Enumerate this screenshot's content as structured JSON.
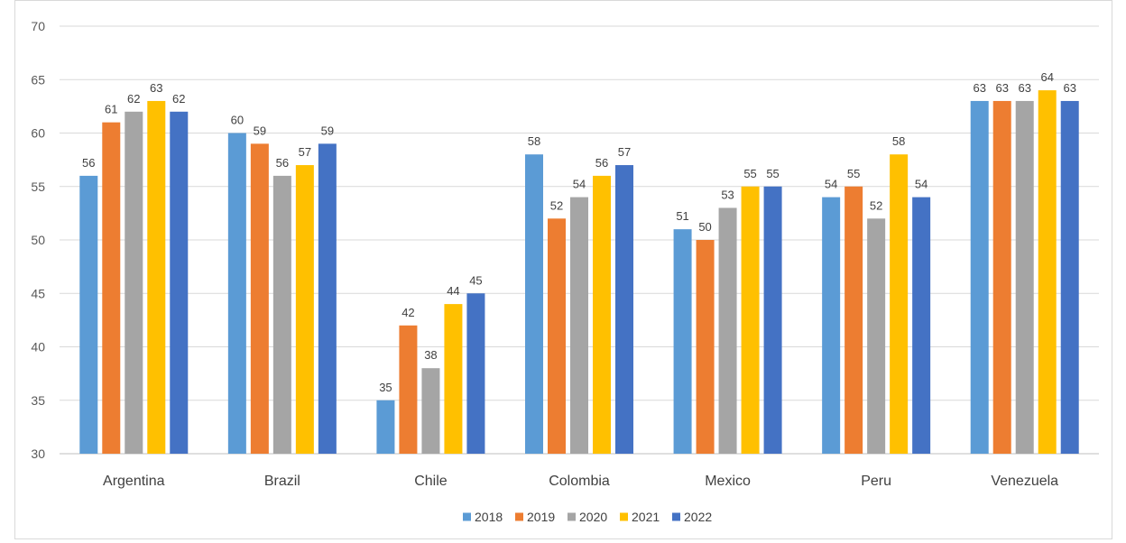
{
  "chart_data": {
    "type": "bar",
    "title": "",
    "xlabel": "",
    "ylabel": "",
    "ylim": [
      30,
      70
    ],
    "yticks": [
      30,
      35,
      40,
      45,
      50,
      55,
      60,
      65,
      70
    ],
    "grid": true,
    "legend_position": "bottom",
    "categories": [
      "Argentina",
      "Brazil",
      "Chile",
      "Colombia",
      "Mexico",
      "Peru",
      "Venezuela"
    ],
    "series": [
      {
        "name": "2018",
        "color": "#5B9BD5",
        "values": [
          56,
          60,
          35,
          58,
          51,
          54,
          63
        ]
      },
      {
        "name": "2019",
        "color": "#ED7D31",
        "values": [
          61,
          59,
          42,
          52,
          50,
          55,
          63
        ]
      },
      {
        "name": "2020",
        "color": "#A5A5A5",
        "values": [
          62,
          56,
          38,
          54,
          53,
          52,
          63
        ]
      },
      {
        "name": "2021",
        "color": "#FFC000",
        "values": [
          63,
          57,
          44,
          56,
          55,
          58,
          64
        ]
      },
      {
        "name": "2022",
        "color": "#4472C4",
        "values": [
          62,
          59,
          45,
          57,
          55,
          54,
          63
        ]
      }
    ]
  }
}
